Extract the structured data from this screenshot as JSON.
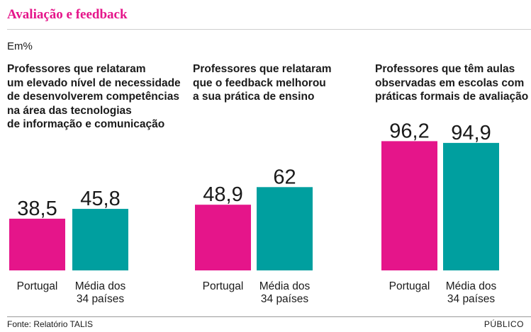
{
  "title": "Avaliação e feedback",
  "unit": "Em%",
  "source": "Fonte: Relatório TALIS",
  "brand": "PÚBLICO",
  "colors": {
    "accent": "#e5158a",
    "portugal": "#e5158a",
    "average": "#009f9f"
  },
  "chart_data": [
    {
      "type": "bar",
      "title": "Professores que relataram\num elevado nível de necessidade\nde desenvolverem competências\nna área das tecnologias\nde informação e comunicação",
      "categories": [
        "Portugal",
        "Média dos\n34 países"
      ],
      "values": [
        38.5,
        45.8
      ],
      "value_labels": [
        "38,5",
        "45,8"
      ],
      "ylim": [
        0,
        100
      ]
    },
    {
      "type": "bar",
      "title": "Professores que relataram\nque o feedback melhorou\na sua prática de ensino",
      "categories": [
        "Portugal",
        "Média dos\n34 países"
      ],
      "values": [
        48.9,
        62
      ],
      "value_labels": [
        "48,9",
        "62"
      ],
      "ylim": [
        0,
        100
      ]
    },
    {
      "type": "bar",
      "title": "Professores que têm aulas\nobservadas em escolas com\npráticas formais de avaliação",
      "categories": [
        "Portugal",
        "Média dos\n34 países"
      ],
      "values": [
        96.2,
        94.9
      ],
      "value_labels": [
        "96,2",
        "94,9"
      ],
      "ylim": [
        0,
        100
      ]
    }
  ]
}
